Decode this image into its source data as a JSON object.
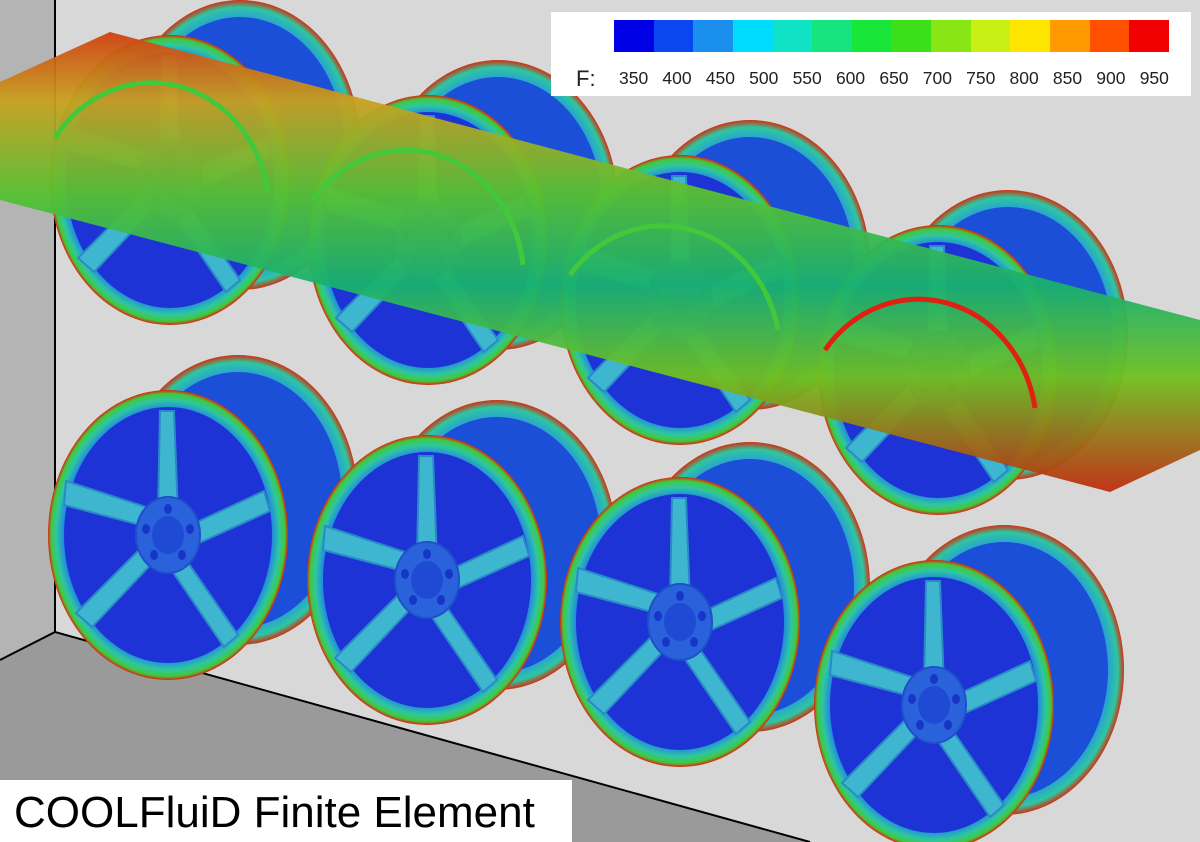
{
  "scene": {
    "description_tag": "3D FEM heat simulation of alloy wheels in a furnace",
    "colors": {
      "wall": "#d8d8d8",
      "wall_side": "#b4b4b4",
      "floor": "#9a9a9a",
      "edge": "#000000",
      "rim_dark": "#1030d8",
      "rim_mid": "#1f6ee6",
      "spoke": "#3fb6d0",
      "spoke_light": "#58d0c0",
      "rim_green": "#36c24a",
      "rim_hot": "#e02010"
    },
    "wheel_count_top": 4,
    "wheel_count_bottom": 4
  },
  "legend": {
    "variable": "F:",
    "ticks": [
      "350",
      "400",
      "450",
      "500",
      "550",
      "600",
      "650",
      "700",
      "750",
      "800",
      "850",
      "900",
      "950"
    ],
    "colors": [
      "#0000e6",
      "#0a47f0",
      "#1a8fee",
      "#00dcff",
      "#10e3c5",
      "#16e47e",
      "#18e638",
      "#3ce01a",
      "#88e614",
      "#c8f014",
      "#ffe600",
      "#ff9a00",
      "#ff5000",
      "#f00000"
    ]
  },
  "caption": {
    "text": "COOLFluiD Finite Element"
  }
}
